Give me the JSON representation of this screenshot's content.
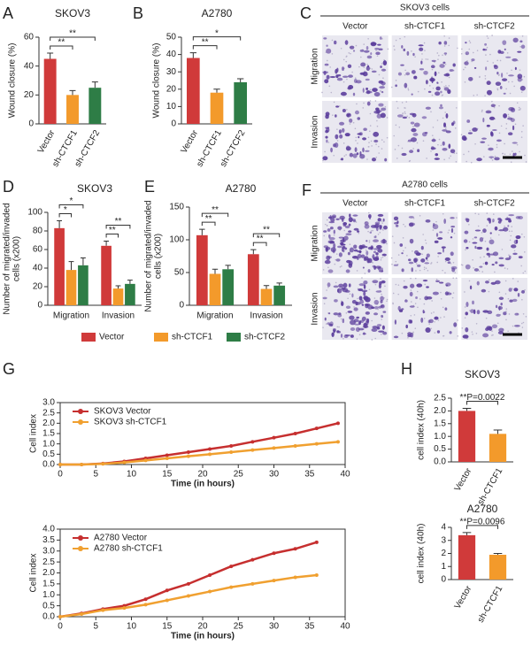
{
  "chart_data": [
    {
      "panel": "A",
      "type": "bar",
      "title": "SKOV3",
      "ylabel": [
        "Wound closure (%)"
      ],
      "categories": [
        "Vector",
        "sh-CTCF1",
        "sh-CTCF2"
      ],
      "values": [
        45,
        20,
        25
      ],
      "errors": [
        4,
        3,
        4
      ],
      "colors": [
        "#d03a3a",
        "#f39a2b",
        "#2e7d46"
      ],
      "ylim": [
        0,
        60
      ],
      "yticks": [
        0,
        20,
        40,
        60
      ],
      "comparisons": [
        {
          "label": "**",
          "between": [
            "Vector",
            "sh-CTCF1"
          ]
        },
        {
          "label": "**",
          "between": [
            "Vector",
            "sh-CTCF2"
          ]
        }
      ]
    },
    {
      "panel": "B",
      "type": "bar",
      "title": "A2780",
      "ylabel": [
        "Wound closure (%)"
      ],
      "categories": [
        "Vector",
        "sh-CTCF1",
        "sh-CTCF2"
      ],
      "values": [
        38,
        18,
        24
      ],
      "errors": [
        3,
        2,
        2
      ],
      "colors": [
        "#d03a3a",
        "#f39a2b",
        "#2e7d46"
      ],
      "ylim": [
        0,
        50
      ],
      "yticks": [
        0,
        10,
        20,
        30,
        40,
        50
      ],
      "comparisons": [
        {
          "label": "**",
          "between": [
            "Vector",
            "sh-CTCF1"
          ]
        },
        {
          "label": "*",
          "between": [
            "Vector",
            "sh-CTCF2"
          ]
        }
      ]
    },
    {
      "panel": "D",
      "type": "bar",
      "title": "SKOV3",
      "ylabel": [
        "Number of migrated/invaded",
        "cells (x200)"
      ],
      "categories": [
        "Migration",
        "Invasion"
      ],
      "series": [
        {
          "name": "Vector",
          "color": "#d03a3a",
          "values": [
            83,
            64
          ],
          "errors": [
            8,
            5
          ]
        },
        {
          "name": "sh-CTCF1",
          "color": "#f39a2b",
          "values": [
            38,
            18
          ],
          "errors": [
            9,
            3
          ]
        },
        {
          "name": "sh-CTCF2",
          "color": "#2e7d46",
          "values": [
            43,
            23
          ],
          "errors": [
            8,
            4
          ]
        }
      ],
      "ylim": [
        0,
        100
      ],
      "yticks": [
        0,
        20,
        40,
        60,
        80,
        100
      ],
      "legend": "below",
      "comparisons": [
        {
          "category": "Migration",
          "label": "*",
          "between": [
            "Vector",
            "sh-CTCF1"
          ]
        },
        {
          "category": "Migration",
          "label": "*",
          "between": [
            "Vector",
            "sh-CTCF2"
          ]
        },
        {
          "category": "Invasion",
          "label": "**",
          "between": [
            "Vector",
            "sh-CTCF1"
          ]
        },
        {
          "category": "Invasion",
          "label": "**",
          "between": [
            "Vector",
            "sh-CTCF2"
          ]
        }
      ]
    },
    {
      "panel": "E",
      "type": "bar",
      "title": "A2780",
      "ylabel": [
        "Number of migrated/invaded",
        "cells (x200)"
      ],
      "categories": [
        "Migration",
        "Invasion"
      ],
      "series": [
        {
          "name": "Vector",
          "color": "#d03a3a",
          "values": [
            107,
            78
          ],
          "errors": [
            9,
            7
          ]
        },
        {
          "name": "sh-CTCF1",
          "color": "#f39a2b",
          "values": [
            48,
            25
          ],
          "errors": [
            7,
            5
          ]
        },
        {
          "name": "sh-CTCF2",
          "color": "#2e7d46",
          "values": [
            55,
            30
          ],
          "errors": [
            6,
            4
          ]
        }
      ],
      "ylim": [
        0,
        150
      ],
      "yticks": [
        0,
        50,
        100,
        150
      ],
      "comparisons": [
        {
          "category": "Migration",
          "label": "**",
          "between": [
            "Vector",
            "sh-CTCF1"
          ]
        },
        {
          "category": "Migration",
          "label": "**",
          "between": [
            "Vector",
            "sh-CTCF2"
          ]
        },
        {
          "category": "Invasion",
          "label": "**",
          "between": [
            "Vector",
            "sh-CTCF1"
          ]
        },
        {
          "category": "Invasion",
          "label": "**",
          "between": [
            "Vector",
            "sh-CTCF2"
          ]
        }
      ]
    },
    {
      "panel": "G",
      "type": "line",
      "xlabel": "Time (in hours)",
      "ylabel": [
        "Cell index"
      ],
      "x": [
        0,
        3,
        6,
        9,
        12,
        15,
        18,
        21,
        24,
        27,
        30,
        33,
        36,
        39
      ],
      "series": [
        {
          "name": "SKOV3 Vector",
          "color": "#c62f2f",
          "values": [
            0,
            0,
            0.05,
            0.15,
            0.3,
            0.45,
            0.6,
            0.75,
            0.9,
            1.1,
            1.3,
            1.5,
            1.75,
            2.0
          ]
        },
        {
          "name": "SKOV3 sh-CTCF1",
          "color": "#f0a030",
          "values": [
            0,
            0,
            0.03,
            0.1,
            0.2,
            0.3,
            0.4,
            0.5,
            0.6,
            0.7,
            0.8,
            0.9,
            1.0,
            1.1
          ]
        }
      ],
      "xlim": [
        0,
        40
      ],
      "xticks": [
        0,
        5,
        10,
        15,
        20,
        25,
        30,
        35,
        40
      ],
      "ylim": [
        0,
        3
      ],
      "yticks": [
        {
          "value": 0,
          "label": "0.0"
        },
        0.5,
        {
          "value": 1,
          "label": "1.0"
        },
        1.5,
        {
          "value": 2,
          "label": "2.0"
        },
        2.5,
        {
          "value": 3,
          "label": "3.0"
        }
      ],
      "legend": "upper left"
    },
    {
      "type": "line",
      "xlabel": "Time (in hours)",
      "ylabel": [
        "Cell index"
      ],
      "x": [
        0,
        3,
        6,
        9,
        12,
        15,
        18,
        21,
        24,
        27,
        30,
        33,
        36
      ],
      "series": [
        {
          "name": "A2780 Vector",
          "color": "#c62f2f",
          "values": [
            0,
            0.15,
            0.35,
            0.5,
            0.8,
            1.2,
            1.5,
            1.9,
            2.3,
            2.6,
            2.9,
            3.1,
            3.4
          ]
        },
        {
          "name": "A2780 sh-CTCF1",
          "color": "#f0a030",
          "values": [
            0,
            0.12,
            0.3,
            0.4,
            0.55,
            0.75,
            0.95,
            1.15,
            1.35,
            1.5,
            1.65,
            1.8,
            1.9
          ]
        }
      ],
      "xlim": [
        0,
        40
      ],
      "xticks": [
        0,
        5,
        10,
        15,
        20,
        25,
        30,
        35,
        40
      ],
      "ylim": [
        0,
        4
      ],
      "yticks": [
        {
          "value": 0,
          "label": "0.0"
        },
        0.5,
        {
          "value": 1,
          "label": "1.0"
        },
        1.5,
        {
          "value": 2,
          "label": "2.0"
        },
        2.5,
        {
          "value": 3,
          "label": "3.0"
        },
        3.5,
        {
          "value": 4,
          "label": "4.0"
        }
      ],
      "legend": "upper left"
    },
    {
      "panel": "H",
      "type": "bar",
      "title": "SKOV3",
      "ylabel": [
        "cell index (40h)"
      ],
      "categories": [
        "Vector",
        "sh-CTCF1"
      ],
      "values": [
        2,
        1.1
      ],
      "errors": [
        0.1,
        0.15
      ],
      "colors": [
        "#d03a3a",
        "#f39a2b"
      ],
      "ylim": [
        0,
        2.5
      ],
      "yticks": [
        {
          "value": 0,
          "label": "0.0"
        },
        0.5,
        {
          "value": 1,
          "label": "1.0"
        },
        1.5,
        {
          "value": 2,
          "label": "2.0"
        },
        2.5
      ],
      "comparisons": [
        {
          "label": "**P=0.0022",
          "between": [
            "Vector",
            "sh-CTCF1"
          ]
        }
      ]
    },
    {
      "type": "bar",
      "title": "A2780",
      "ylabel": [
        "cell index (40h)"
      ],
      "categories": [
        "Vector",
        "sh-CTCF1"
      ],
      "values": [
        3.4,
        1.9
      ],
      "errors": [
        0.2,
        0.1
      ],
      "colors": [
        "#d03a3a",
        "#f39a2b"
      ],
      "ylim": [
        0,
        4
      ],
      "yticks": [
        0,
        1,
        2,
        3,
        4
      ],
      "comparisons": [
        {
          "label": "**P=0.0096",
          "between": [
            "Vector",
            "sh-CTCF1"
          ]
        }
      ]
    }
  ],
  "image_panels": [
    {
      "panel": "C",
      "title": "SKOV3 cells",
      "columns": [
        "Vector",
        "sh-CTCF1",
        "sh-CTCF2"
      ],
      "rows": [
        "Migration",
        "Invasion"
      ]
    },
    {
      "panel": "F",
      "title": "A2780 cells",
      "columns": [
        "Vector",
        "sh-CTCF1",
        "sh-CTCF2"
      ],
      "rows": [
        "Migration",
        "Invasion"
      ]
    }
  ]
}
